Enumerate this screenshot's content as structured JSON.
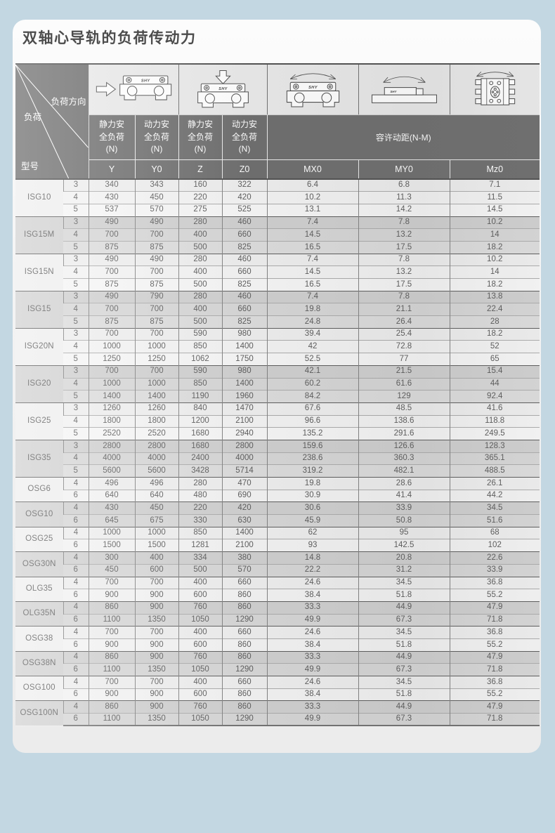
{
  "page": {
    "title": "双轴心导轨的负荷传动力"
  },
  "colors": {
    "page_bg": "#c3d7e2",
    "card_bg": "#f3f3f3",
    "header_bg": "#6c6c6c",
    "header_text": "#ffffff",
    "group_light": "#f3f3f3",
    "group_dark": "#d6d6d6",
    "cell_text": "#5a5a5a"
  },
  "table": {
    "corner": {
      "top_right": "负荷方向",
      "middle": "负荷",
      "bottom_left": "型号"
    },
    "icon_logo": "SHY",
    "icons": {
      "y": "horizontal-load-carriage-icon",
      "z": "vertical-load-carriage-icon",
      "mx0": "roll-moment-carriage-icon",
      "my0": "pitch-moment-rail-side-icon",
      "mz0": "yaw-moment-rail-top-icon"
    },
    "load_headers": [
      "静力安全负荷",
      "动力安全负荷",
      "静力安全负荷",
      "动力安全负荷"
    ],
    "load_unit": "(N)",
    "moment_header": "容许动距(N-M)",
    "sub_headers": [
      "Y",
      "Y0",
      "Z",
      "Z0",
      "MX0",
      "MY0",
      "Mz0"
    ],
    "groups": [
      {
        "model": "ISG10",
        "rows": [
          [
            "3",
            "340",
            "343",
            "160",
            "322",
            "6.4",
            "6.8",
            "7.1"
          ],
          [
            "4",
            "430",
            "450",
            "220",
            "420",
            "10.2",
            "11.3",
            "11.5"
          ],
          [
            "5",
            "537",
            "570",
            "275",
            "525",
            "13.1",
            "14.2",
            "14.5"
          ]
        ]
      },
      {
        "model": "ISG15M",
        "rows": [
          [
            "3",
            "490",
            "490",
            "280",
            "460",
            "7.4",
            "7.8",
            "10.2"
          ],
          [
            "4",
            "700",
            "700",
            "400",
            "660",
            "14.5",
            "13.2",
            "14"
          ],
          [
            "5",
            "875",
            "875",
            "500",
            "825",
            "16.5",
            "17.5",
            "18.2"
          ]
        ]
      },
      {
        "model": "ISG15N",
        "rows": [
          [
            "3",
            "490",
            "490",
            "280",
            "460",
            "7.4",
            "7.8",
            "10.2"
          ],
          [
            "4",
            "700",
            "700",
            "400",
            "660",
            "14.5",
            "13.2",
            "14"
          ],
          [
            "5",
            "875",
            "875",
            "500",
            "825",
            "16.5",
            "17.5",
            "18.2"
          ]
        ]
      },
      {
        "model": "ISG15",
        "rows": [
          [
            "3",
            "490",
            "790",
            "280",
            "460",
            "7.4",
            "7.8",
            "13.8"
          ],
          [
            "4",
            "700",
            "700",
            "400",
            "660",
            "19.8",
            "21.1",
            "22.4"
          ],
          [
            "5",
            "875",
            "875",
            "500",
            "825",
            "24.8",
            "26.4",
            "28"
          ]
        ]
      },
      {
        "model": "ISG20N",
        "rows": [
          [
            "3",
            "700",
            "700",
            "590",
            "980",
            "39.4",
            "25.4",
            "18.2"
          ],
          [
            "4",
            "1000",
            "1000",
            "850",
            "1400",
            "42",
            "72.8",
            "52"
          ],
          [
            "5",
            "1250",
            "1250",
            "1062",
            "1750",
            "52.5",
            "77",
            "65"
          ]
        ]
      },
      {
        "model": "ISG20",
        "rows": [
          [
            "3",
            "700",
            "700",
            "590",
            "980",
            "42.1",
            "21.5",
            "15.4"
          ],
          [
            "4",
            "1000",
            "1000",
            "850",
            "1400",
            "60.2",
            "61.6",
            "44"
          ],
          [
            "5",
            "1400",
            "1400",
            "1190",
            "1960",
            "84.2",
            "129",
            "92.4"
          ]
        ]
      },
      {
        "model": "ISG25",
        "rows": [
          [
            "3",
            "1260",
            "1260",
            "840",
            "1470",
            "67.6",
            "48.5",
            "41.6"
          ],
          [
            "4",
            "1800",
            "1800",
            "1200",
            "2100",
            "96.6",
            "138.6",
            "118.8"
          ],
          [
            "5",
            "2520",
            "2520",
            "1680",
            "2940",
            "135.2",
            "291.6",
            "249.5"
          ]
        ]
      },
      {
        "model": "ISG35",
        "rows": [
          [
            "3",
            "2800",
            "2800",
            "1680",
            "2800",
            "159.6",
            "126.6",
            "128.3"
          ],
          [
            "4",
            "4000",
            "4000",
            "2400",
            "4000",
            "238.6",
            "360.3",
            "365.1"
          ],
          [
            "5",
            "5600",
            "5600",
            "3428",
            "5714",
            "319.2",
            "482.1",
            "488.5"
          ]
        ]
      },
      {
        "model": "OSG6",
        "rows": [
          [
            "4",
            "496",
            "496",
            "280",
            "470",
            "19.8",
            "28.6",
            "26.1"
          ],
          [
            "6",
            "640",
            "640",
            "480",
            "690",
            "30.9",
            "41.4",
            "44.2"
          ]
        ]
      },
      {
        "model": "OSG10",
        "rows": [
          [
            "4",
            "430",
            "450",
            "220",
            "420",
            "30.6",
            "33.9",
            "34.5"
          ],
          [
            "6",
            "645",
            "675",
            "330",
            "630",
            "45.9",
            "50.8",
            "51.6"
          ]
        ]
      },
      {
        "model": "OSG25",
        "rows": [
          [
            "4",
            "1000",
            "1000",
            "850",
            "1400",
            "62",
            "95",
            "68"
          ],
          [
            "6",
            "1500",
            "1500",
            "1281",
            "2100",
            "93",
            "142.5",
            "102"
          ]
        ]
      },
      {
        "model": "OSG30N",
        "rows": [
          [
            "4",
            "300",
            "400",
            "334",
            "380",
            "14.8",
            "20.8",
            "22.6"
          ],
          [
            "6",
            "450",
            "600",
            "500",
            "570",
            "22.2",
            "31.2",
            "33.9"
          ]
        ]
      },
      {
        "model": "OLG35",
        "rows": [
          [
            "4",
            "700",
            "700",
            "400",
            "660",
            "24.6",
            "34.5",
            "36.8"
          ],
          [
            "6",
            "900",
            "900",
            "600",
            "860",
            "38.4",
            "51.8",
            "55.2"
          ]
        ]
      },
      {
        "model": "OLG35N",
        "rows": [
          [
            "4",
            "860",
            "900",
            "760",
            "860",
            "33.3",
            "44.9",
            "47.9"
          ],
          [
            "6",
            "1100",
            "1350",
            "1050",
            "1290",
            "49.9",
            "67.3",
            "71.8"
          ]
        ]
      },
      {
        "model": "OSG38",
        "rows": [
          [
            "4",
            "700",
            "700",
            "400",
            "660",
            "24.6",
            "34.5",
            "36.8"
          ],
          [
            "6",
            "900",
            "900",
            "600",
            "860",
            "38.4",
            "51.8",
            "55.2"
          ]
        ]
      },
      {
        "model": "OSG38N",
        "rows": [
          [
            "4",
            "860",
            "900",
            "760",
            "860",
            "33.3",
            "44.9",
            "47.9"
          ],
          [
            "6",
            "1100",
            "1350",
            "1050",
            "1290",
            "49.9",
            "67.3",
            "71.8"
          ]
        ]
      },
      {
        "model": "OSG100",
        "rows": [
          [
            "4",
            "700",
            "700",
            "400",
            "660",
            "24.6",
            "34.5",
            "36.8"
          ],
          [
            "6",
            "900",
            "900",
            "600",
            "860",
            "38.4",
            "51.8",
            "55.2"
          ]
        ]
      },
      {
        "model": "OSG100N",
        "rows": [
          [
            "4",
            "860",
            "900",
            "760",
            "860",
            "33.3",
            "44.9",
            "47.9"
          ],
          [
            "6",
            "1100",
            "1350",
            "1050",
            "1290",
            "49.9",
            "67.3",
            "71.8"
          ]
        ]
      }
    ]
  }
}
